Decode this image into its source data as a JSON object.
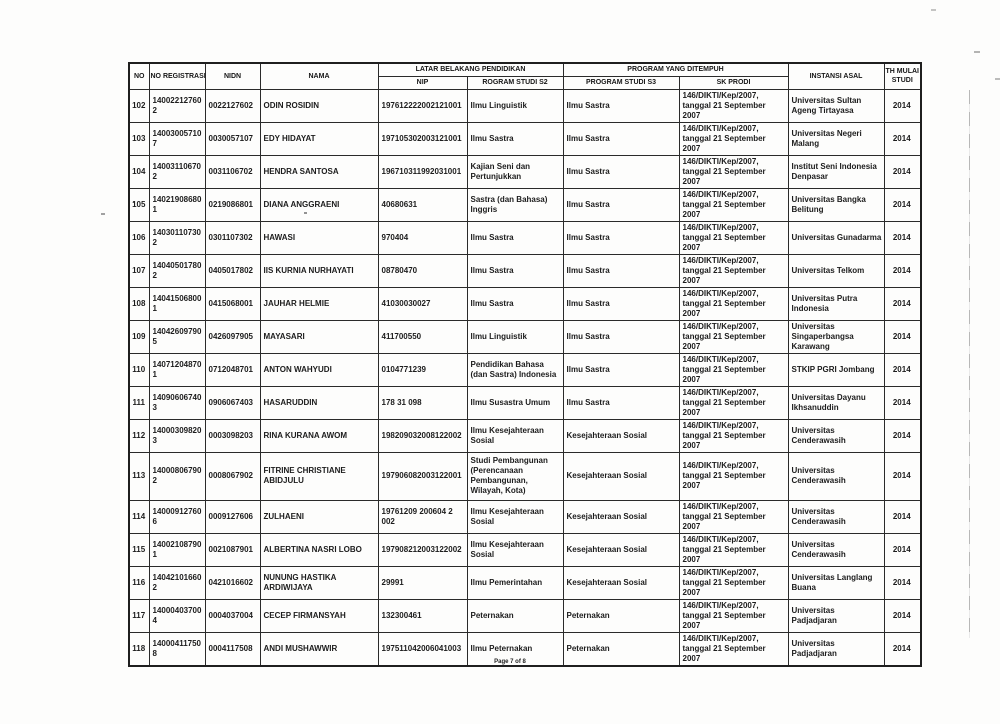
{
  "document": {
    "footer": "Page 7 of 8"
  },
  "table": {
    "columns": {
      "no": "NO",
      "no_registrasi": "NO REGISTRASI",
      "nidn": "NIDN",
      "nama": "NAMA",
      "latar_group": "LATAR BELAKANG PENDIDIKAN",
      "nip": "NIP",
      "s2": "ROGRAM STUDI S2",
      "program_group": "PROGRAM YANG DITEMPUH",
      "s3": "PROGRAM STUDI S3",
      "sk": "SK PRODI",
      "instansi": "INSTANSI ASAL",
      "th": "TH MULAI STUDI"
    },
    "rows": [
      {
        "no": "102",
        "reg": "140022127602",
        "nidn": "0022127602",
        "nama": "ODIN ROSIDIN",
        "nip": "197612222002121001",
        "s2": "Ilmu Linguistik",
        "s3": "Ilmu Sastra",
        "sk": "146/DIKTI/Kep/2007, tanggal 21 September 2007",
        "instansi": "Universitas Sultan Ageng Tirtayasa",
        "th": "2014"
      },
      {
        "no": "103",
        "reg": "140030057107",
        "nidn": "0030057107",
        "nama": "EDY HIDAYAT",
        "nip": "197105302003121001",
        "s2": "Ilmu Sastra",
        "s3": "Ilmu Sastra",
        "sk": "146/DIKTI/Kep/2007, tanggal 21 September 2007",
        "instansi": "Universitas Negeri Malang",
        "th": "2014"
      },
      {
        "no": "104",
        "reg": "140031106702",
        "nidn": "0031106702",
        "nama": "HENDRA SANTOSA",
        "nip": "196710311992031001",
        "s2": "Kajian Seni dan Pertunjukkan",
        "s3": "Ilmu Sastra",
        "sk": "146/DIKTI/Kep/2007, tanggal 21 September 2007",
        "instansi": "Institut Seni Indonesia Denpasar",
        "th": "2014"
      },
      {
        "no": "105",
        "reg": "140219086801",
        "nidn": "0219086801",
        "nama": "DIANA ANGGRAENI",
        "nip": "40680631",
        "s2": "Sastra (dan Bahasa) Inggris",
        "s3": "Ilmu Sastra",
        "sk": "146/DIKTI/Kep/2007, tanggal 21 September 2007",
        "instansi": "Universitas Bangka Belitung",
        "th": "2014"
      },
      {
        "no": "106",
        "reg": "140301107302",
        "nidn": "0301107302",
        "nama": "HAWASI",
        "nip": "970404",
        "s2": "Ilmu Sastra",
        "s3": "Ilmu Sastra",
        "sk": "146/DIKTI/Kep/2007, tanggal 21 September 2007",
        "instansi": "Universitas Gunadarma",
        "th": "2014"
      },
      {
        "no": "107",
        "reg": "140405017802",
        "nidn": "0405017802",
        "nama": "IIS KURNIA NURHAYATI",
        "nip": "08780470",
        "s2": "Ilmu Sastra",
        "s3": "Ilmu Sastra",
        "sk": "146/DIKTI/Kep/2007, tanggal 21 September 2007",
        "instansi": "Universitas Telkom",
        "th": "2014"
      },
      {
        "no": "108",
        "reg": "140415068001",
        "nidn": "0415068001",
        "nama": "JAUHAR HELMIE",
        "nip": "41030030027",
        "s2": "Ilmu Sastra",
        "s3": "Ilmu Sastra",
        "sk": "146/DIKTI/Kep/2007, tanggal 21 September 2007",
        "instansi": "Universitas Putra Indonesia",
        "th": "2014"
      },
      {
        "no": "109",
        "reg": "140426097905",
        "nidn": "0426097905",
        "nama": "MAYASARI",
        "nip": "411700550",
        "s2": "Ilmu Linguistik",
        "s3": "Ilmu Sastra",
        "sk": "146/DIKTI/Kep/2007, tanggal 21 September 2007",
        "instansi": "Universitas Singaperbangsa Karawang",
        "th": "2014"
      },
      {
        "no": "110",
        "reg": "140712048701",
        "nidn": "0712048701",
        "nama": "ANTON WAHYUDI",
        "nip": "0104771239",
        "s2": "Pendidikan Bahasa (dan Sastra) Indonesia",
        "s3": "Ilmu Sastra",
        "sk": "146/DIKTI/Kep/2007, tanggal 21 September 2007",
        "instansi": "STKIP PGRI Jombang",
        "th": "2014"
      },
      {
        "no": "111",
        "reg": "140906067403",
        "nidn": "0906067403",
        "nama": "HASARUDDIN",
        "nip": "178 31 098",
        "s2": "Ilmu Susastra Umum",
        "s3": "Ilmu Sastra",
        "sk": "146/DIKTI/Kep/2007, tanggal 21 September 2007",
        "instansi": "Universitas Dayanu Ikhsanuddin",
        "th": "2014"
      },
      {
        "no": "112",
        "reg": "140003098203",
        "nidn": "0003098203",
        "nama": "RINA KURANA AWOM",
        "nip": "198209032008122002",
        "s2": "Ilmu Kesejahteraan Sosial",
        "s3": "Kesejahteraan Sosial",
        "sk": "146/DIKTI/Kep/2007, tanggal 21 September 2007",
        "instansi": "Universitas Cenderawasih",
        "th": "2014"
      },
      {
        "no": "113",
        "reg": "140008067902",
        "nidn": "0008067902",
        "nama": "FITRINE CHRISTIANE ABIDJULU",
        "nip": "197906082003122001",
        "s2": "Studi Pembangunan (Perencanaan Pembangunan, Wilayah, Kota)",
        "s3": "Kesejahteraan Sosial",
        "sk": "146/DIKTI/Kep/2007, tanggal 21 September 2007",
        "instansi": "Universitas Cenderawasih",
        "th": "2014"
      },
      {
        "no": "114",
        "reg": "140009127606",
        "nidn": "0009127606",
        "nama": "ZULHAENI",
        "nip": "19761209 200604 2 002",
        "s2": "Ilmu Kesejahteraan Sosial",
        "s3": "Kesejahteraan Sosial",
        "sk": "146/DIKTI/Kep/2007, tanggal 21 September 2007",
        "instansi": "Universitas Cenderawasih",
        "th": "2014"
      },
      {
        "no": "115",
        "reg": "140021087901",
        "nidn": "0021087901",
        "nama": "ALBERTINA NASRI LOBO",
        "nip": "197908212003122002",
        "s2": "Ilmu Kesejahteraan Sosial",
        "s3": "Kesejahteraan Sosial",
        "sk": "146/DIKTI/Kep/2007, tanggal 21 September 2007",
        "instansi": "Universitas Cenderawasih",
        "th": "2014"
      },
      {
        "no": "116",
        "reg": "140421016602",
        "nidn": "0421016602",
        "nama": "NUNUNG HASTIKA ARDIWIJAYA",
        "nip": "29991",
        "s2": "Ilmu Pemerintahan",
        "s3": "Kesejahteraan Sosial",
        "sk": "146/DIKTI/Kep/2007, tanggal 21 September 2007",
        "instansi": "Universitas Langlang Buana",
        "th": "2014"
      },
      {
        "no": "117",
        "reg": "140004037004",
        "nidn": "0004037004",
        "nama": "CECEP FIRMANSYAH",
        "nip": "132300461",
        "s2": "Peternakan",
        "s3": "Peternakan",
        "sk": "146/DIKTI/Kep/2007, tanggal 21 September 2007",
        "instansi": "Universitas Padjadjaran",
        "th": "2014"
      },
      {
        "no": "118",
        "reg": "140004117508",
        "nidn": "0004117508",
        "nama": "ANDI MUSHAWWIR",
        "nip": "197511042006041003",
        "s2": "Ilmu Peternakan",
        "s3": "Peternakan",
        "sk": "146/DIKTI/Kep/2007, tanggal 21 September 2007",
        "instansi": "Universitas Padjadjaran",
        "th": "2014"
      }
    ]
  }
}
